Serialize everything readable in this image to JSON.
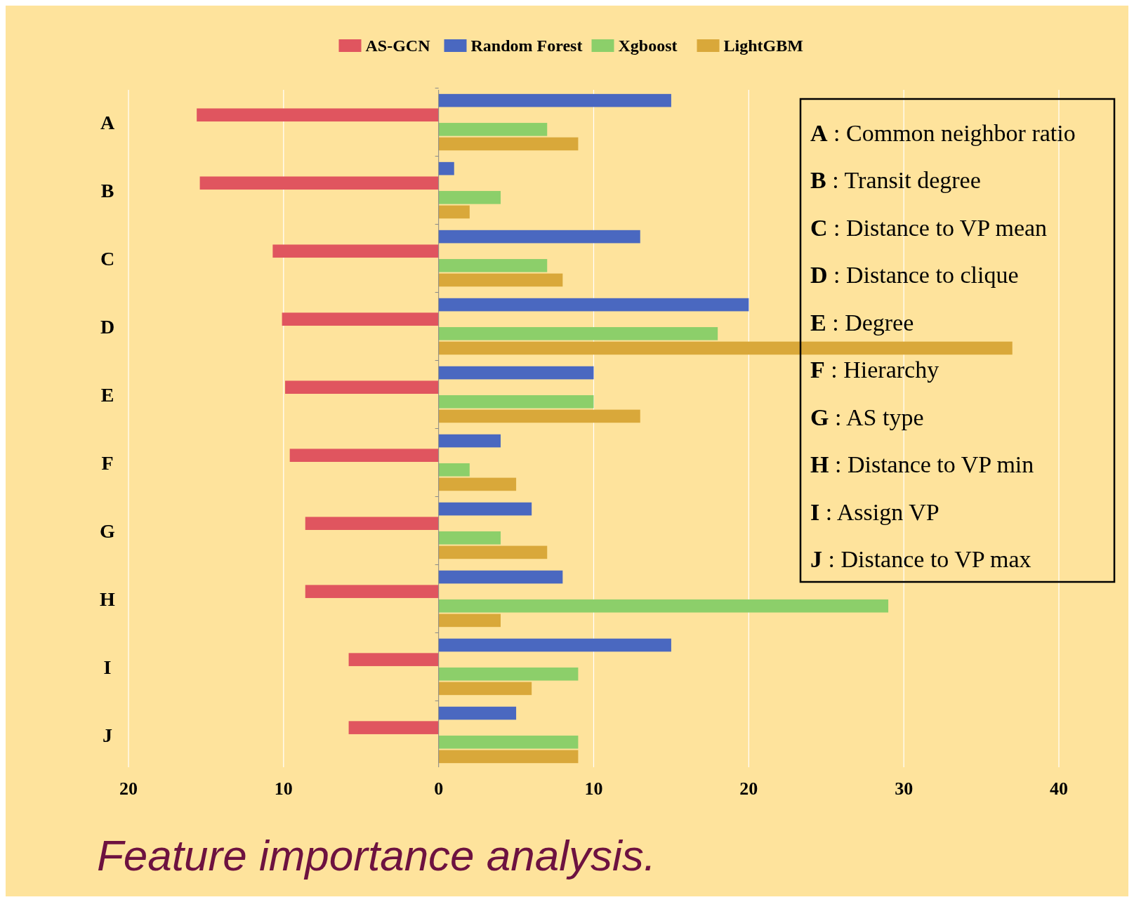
{
  "chart_data": {
    "type": "bar",
    "orientation": "horizontal",
    "title": "Feature importance analysis.",
    "categories": [
      "A",
      "B",
      "C",
      "D",
      "E",
      "F",
      "G",
      "H",
      "I",
      "J"
    ],
    "series": [
      {
        "name": "AS-GCN",
        "color": "#e0555f",
        "values": [
          -15.6,
          -15.4,
          -10.7,
          -10.1,
          -9.9,
          -9.6,
          -8.6,
          -8.6,
          -5.8,
          -5.8
        ]
      },
      {
        "name": "Random Forest",
        "color": "#4a68c0",
        "values": [
          15,
          1,
          13,
          20,
          10,
          4,
          6,
          8,
          15,
          5
        ]
      },
      {
        "name": "Xgboost",
        "color": "#8ccf6a",
        "values": [
          7,
          4,
          7,
          18,
          10,
          2,
          4,
          29,
          9,
          9
        ]
      },
      {
        "name": "LightGBM",
        "color": "#d9a83a",
        "values": [
          9,
          2,
          8,
          37,
          13,
          5,
          7,
          4,
          6,
          9
        ]
      }
    ],
    "xlim": [
      -20,
      40
    ],
    "xticks": [
      {
        "value": -20,
        "label": "20"
      },
      {
        "value": -10,
        "label": "10"
      },
      0,
      10,
      20,
      30,
      40
    ],
    "grid": "x",
    "legend": "top",
    "annotations": [
      "A : Common neighbor ratio",
      "B : Transit degree",
      "C : Distance to VP mean",
      "D : Distance to clique",
      "E : Degree",
      "F : Hierarchy",
      "G : AS type",
      "H : Distance to VP min",
      "I : Assign VP",
      "J : Distance to VP max"
    ]
  }
}
